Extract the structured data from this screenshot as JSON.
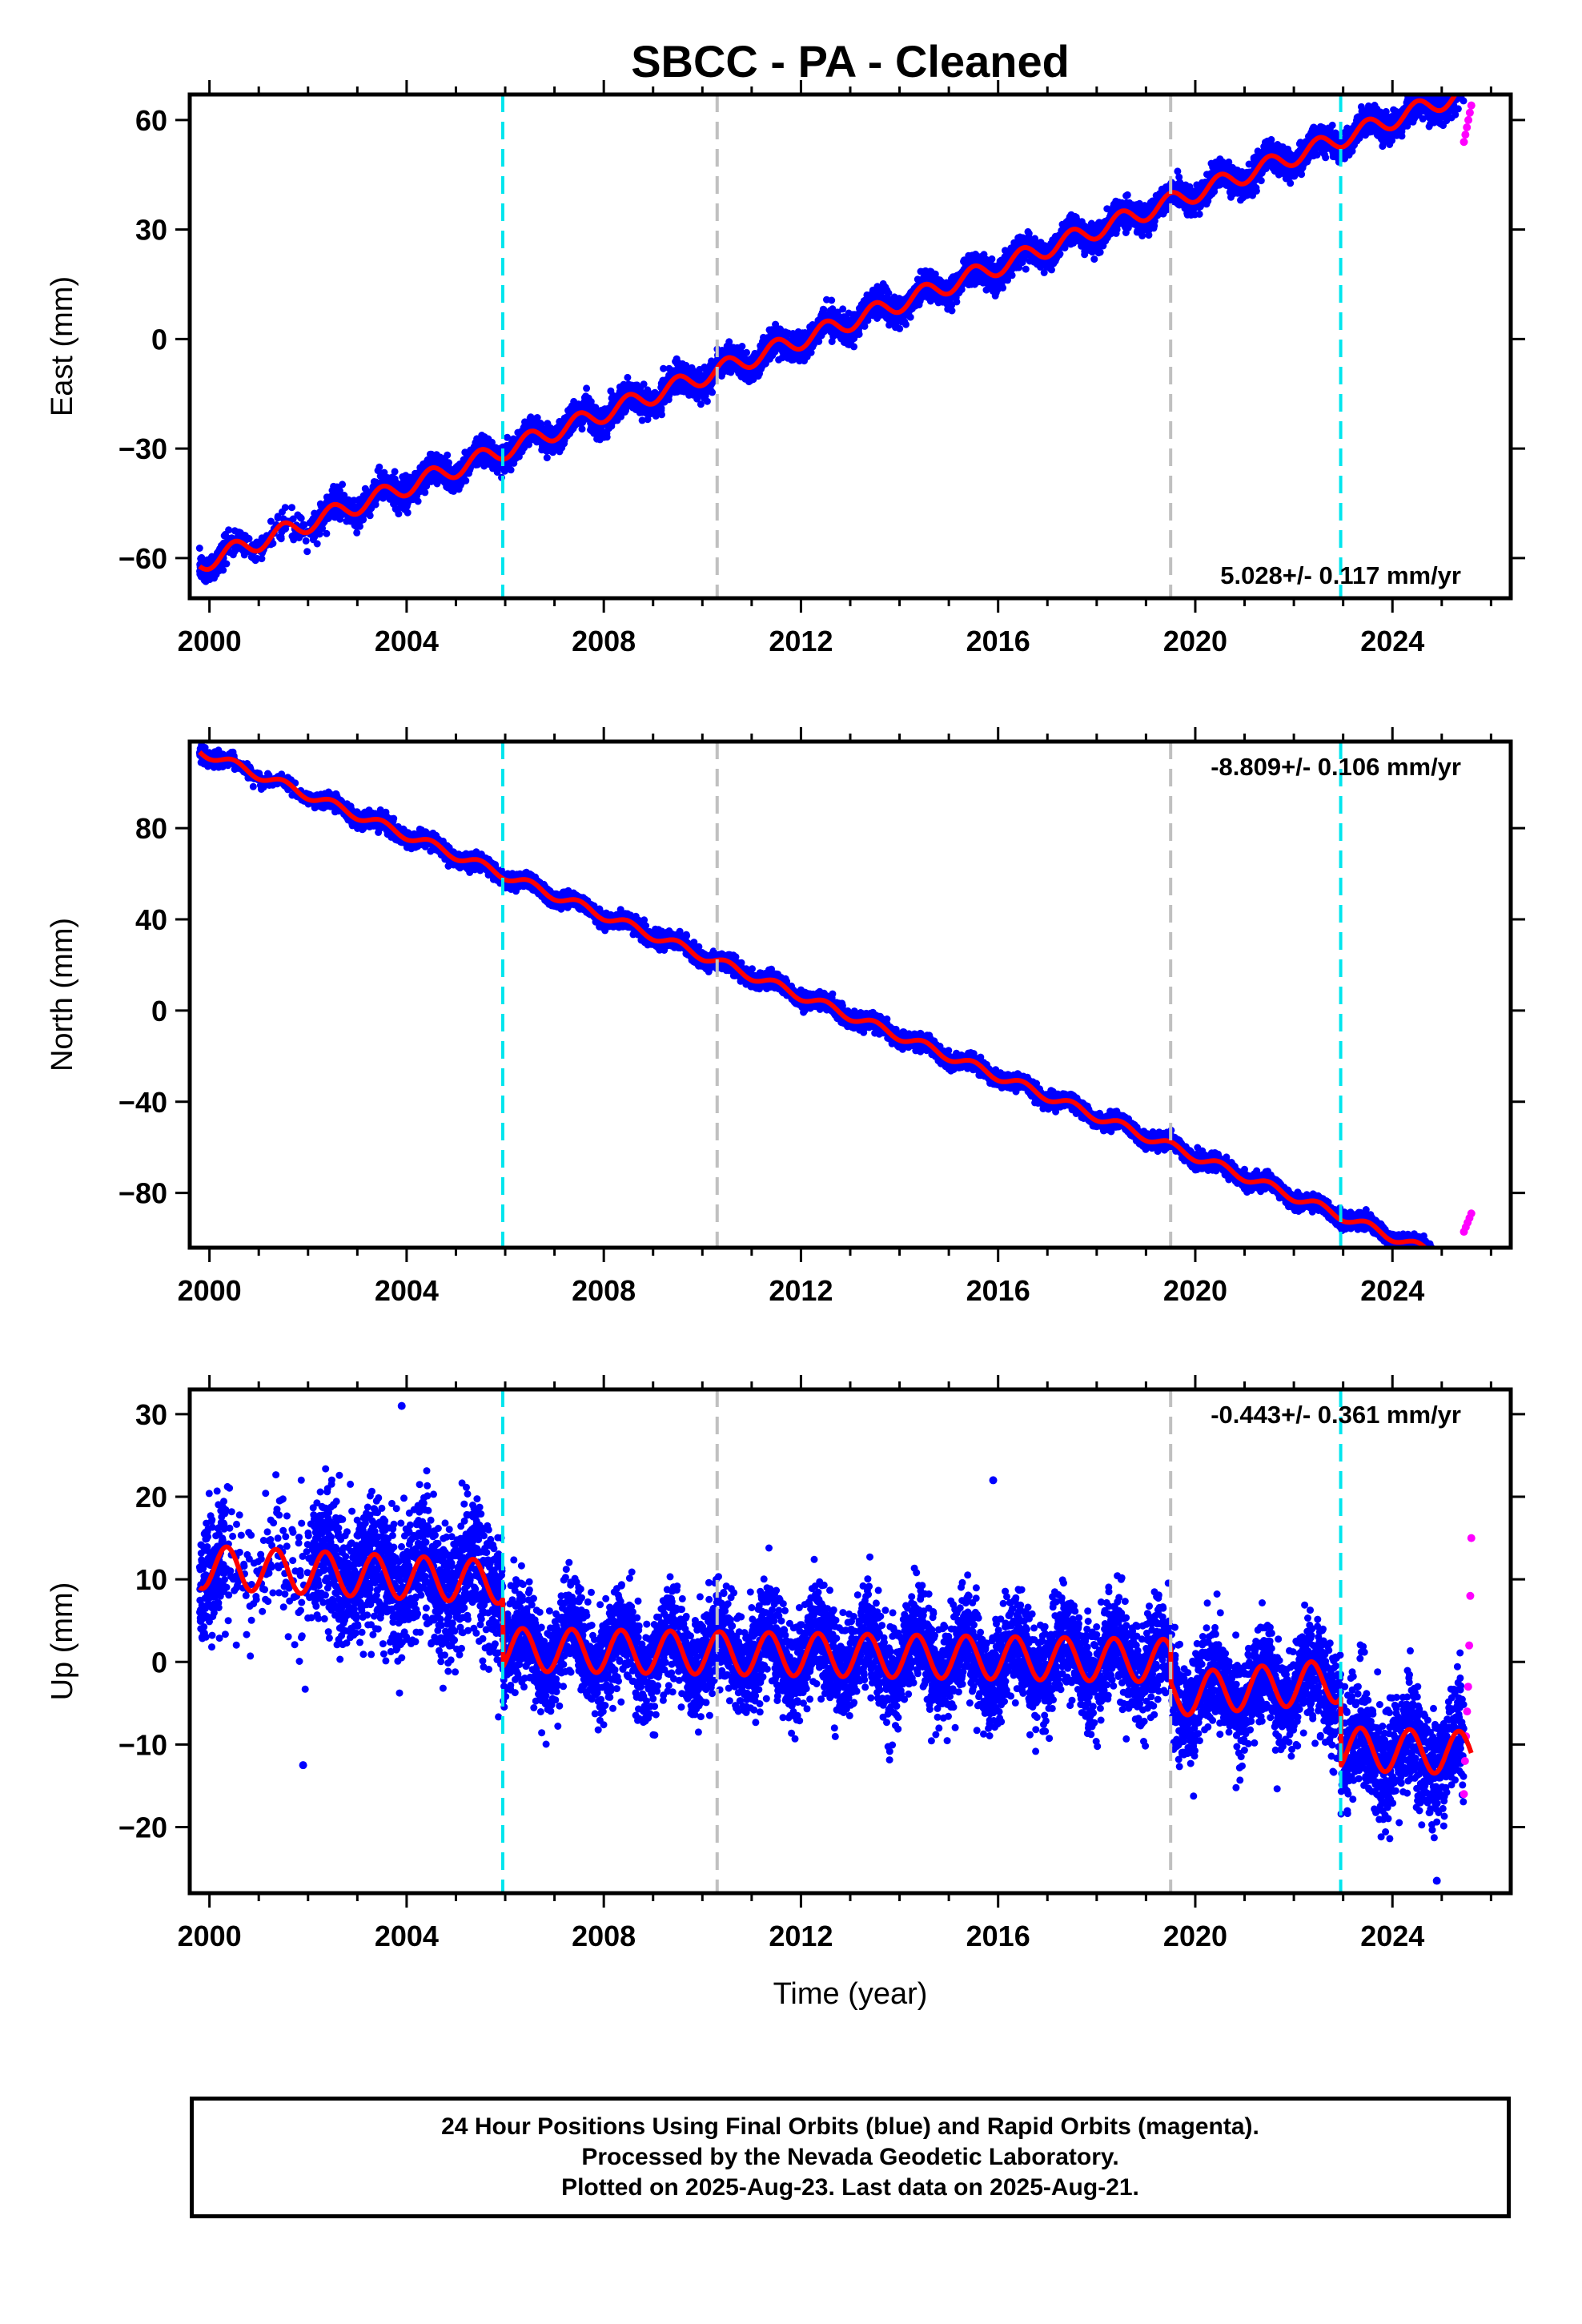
{
  "title": "SBCC  - PA - Cleaned",
  "colors": {
    "final_orbits": "#0000ff",
    "rapid_orbits": "#ff00ff",
    "model_fit": "#ff0000",
    "equipment_change": "#00e5ee",
    "other_event": "#c0c0c0"
  },
  "chart_data": [
    {
      "type": "scatter",
      "name": "east-panel",
      "ylabel": "East (mm)",
      "xlabel": "",
      "xlim": [
        1999.6,
        2026.4
      ],
      "ylim": [
        -71,
        67
      ],
      "yticks": [
        -60,
        -30,
        0,
        30,
        60
      ],
      "xticks": [
        2000,
        2004,
        2008,
        2012,
        2016,
        2020,
        2024
      ],
      "grid": false,
      "rate_label": "5.028+/- 0.117 mm/yr",
      "rate_position": "bottom-right",
      "trend": {
        "start_x": 1999.8,
        "start_y": -61.5,
        "rate": 5.028,
        "annual_amplitude": 2.5,
        "scatter": 1.8
      },
      "series_fit": {
        "name": "",
        "model": "linear+seasonal"
      },
      "rapid_points": {
        "x_range": [
          2025.45,
          2025.6
        ],
        "values": [
          54,
          56,
          58,
          60,
          62,
          64
        ]
      },
      "event_lines": [
        {
          "x": 2005.95,
          "kind": "equipment_change"
        },
        {
          "x": 2010.3,
          "kind": "other_event"
        },
        {
          "x": 2019.5,
          "kind": "other_event"
        },
        {
          "x": 2022.95,
          "kind": "equipment_change"
        }
      ]
    },
    {
      "type": "scatter",
      "name": "north-panel",
      "ylabel": "North (mm)",
      "xlabel": "",
      "xlim": [
        1999.6,
        2026.4
      ],
      "ylim": [
        -104,
        118
      ],
      "yticks": [
        -80,
        -40,
        0,
        40,
        80
      ],
      "xticks": [
        2000,
        2004,
        2008,
        2012,
        2016,
        2020,
        2024
      ],
      "grid": false,
      "rate_label": "-8.809+/- 0.106 mm/yr",
      "rate_position": "top-right",
      "trend": {
        "start_x": 1999.8,
        "start_y": 114,
        "rate": -8.809,
        "annual_amplitude": 2.0,
        "scatter": 1.6
      },
      "series_fit": {
        "name": "",
        "model": "linear+seasonal"
      },
      "rapid_points": {
        "x_range": [
          2025.45,
          2025.6
        ],
        "values": [
          -97,
          -95,
          -93,
          -91,
          -89
        ]
      },
      "event_lines": [
        {
          "x": 2005.95,
          "kind": "equipment_change"
        },
        {
          "x": 2010.3,
          "kind": "other_event"
        },
        {
          "x": 2019.5,
          "kind": "other_event"
        },
        {
          "x": 2022.95,
          "kind": "equipment_change"
        }
      ]
    },
    {
      "type": "scatter",
      "name": "up-panel",
      "ylabel": "Up (mm)",
      "xlabel": "Time (year)",
      "xlim": [
        1999.6,
        2026.4
      ],
      "ylim": [
        -28,
        33
      ],
      "yticks": [
        -20,
        -10,
        0,
        10,
        20,
        30
      ],
      "xticks": [
        2000,
        2004,
        2008,
        2012,
        2016,
        2020,
        2024
      ],
      "grid": false,
      "rate_label": "-0.443+/- 0.361 mm/yr",
      "rate_position": "top-right",
      "segments": [
        {
          "from": 1999.8,
          "to": 2005.95,
          "start_y": 11.5,
          "rate": -0.3,
          "annual_amplitude": 2.6,
          "scatter": 4.0
        },
        {
          "from": 2005.95,
          "to": 2019.5,
          "start_y": 1.5,
          "rate": -0.1,
          "annual_amplitude": 2.6,
          "scatter": 3.0
        },
        {
          "from": 2019.5,
          "to": 2022.95,
          "start_y": -4.0,
          "rate": 0.5,
          "annual_amplitude": 2.6,
          "scatter": 3.0
        },
        {
          "from": 2022.95,
          "to": 2025.6,
          "start_y": -10.5,
          "rate": -0.2,
          "annual_amplitude": 2.6,
          "scatter": 3.5
        }
      ],
      "series_fit": {
        "name": "",
        "model": "linear+seasonal+offsets"
      },
      "rapid_points": {
        "x_range": [
          2025.45,
          2025.6
        ],
        "values": [
          -16,
          -12,
          -9,
          -6,
          -3,
          2,
          8,
          15
        ]
      },
      "outliers": [
        {
          "x": 2003.9,
          "y": 31
        },
        {
          "x": 2015.9,
          "y": 22
        },
        {
          "x": 2001.9,
          "y": -12.5
        },
        {
          "x": 2024.9,
          "y": -26.5
        }
      ],
      "event_lines": [
        {
          "x": 2005.95,
          "kind": "equipment_change"
        },
        {
          "x": 2010.3,
          "kind": "other_event"
        },
        {
          "x": 2019.5,
          "kind": "other_event"
        },
        {
          "x": 2022.95,
          "kind": "equipment_change"
        }
      ]
    }
  ],
  "footer": {
    "line1": "24 Hour Positions Using Final Orbits (blue) and Rapid Orbits (magenta).",
    "line2": "Processed by the Nevada Geodetic Laboratory.",
    "line3": "Plotted on 2025-Aug-23. Last data on 2025-Aug-21."
  }
}
